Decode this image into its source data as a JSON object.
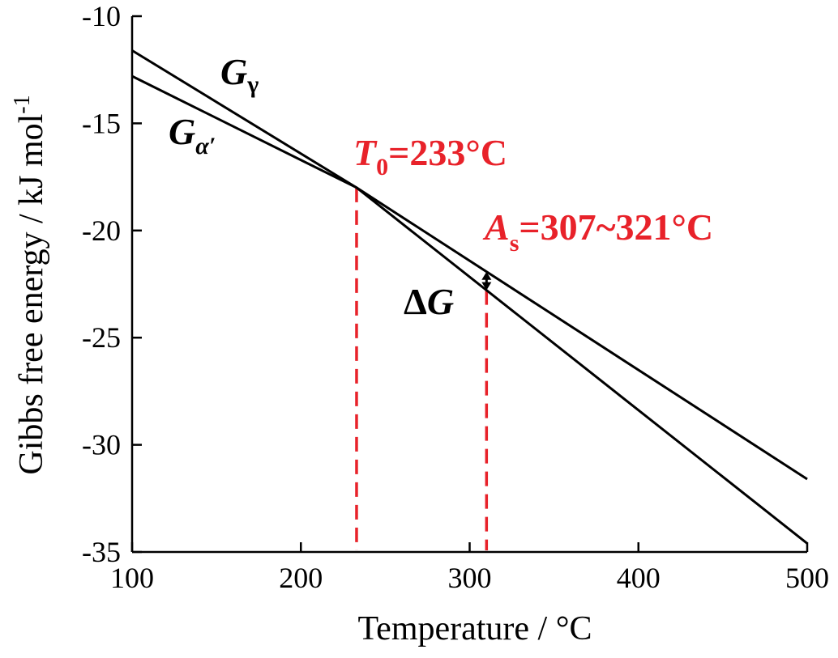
{
  "chart_data": {
    "type": "line",
    "title": "",
    "xlabel": "Temperature / °C",
    "ylabel_main": "Gibbs free energy / kJ mol",
    "ylabel_sup": "-1",
    "xlim": [
      100,
      500
    ],
    "ylim": [
      -35,
      -10
    ],
    "x_ticks": [
      100,
      200,
      300,
      400,
      500
    ],
    "y_ticks": [
      -10,
      -15,
      -20,
      -25,
      -30,
      -35
    ],
    "x_tick_labels": [
      "100",
      "200",
      "300",
      "400",
      "500"
    ],
    "y_tick_labels": [
      "-10",
      "-15",
      "-20",
      "-25",
      "-30",
      "-35"
    ],
    "grid": false,
    "legend": "none",
    "series": [
      {
        "label_main": "G",
        "label_sub": "γ",
        "x": [
          100,
          233,
          500
        ],
        "y": [
          -11.6,
          -18.0,
          -34.6
        ],
        "color": "#000000"
      },
      {
        "label_main": "G",
        "label_sub": "α′",
        "x": [
          100,
          233,
          500
        ],
        "y": [
          -12.8,
          -18.0,
          -31.6
        ],
        "color": "#000000"
      }
    ],
    "annotations": {
      "t0": {
        "main": "T",
        "sub": "0",
        "rest": "=233°C",
        "x": 233
      },
      "as": {
        "main": "A",
        "sub": "s",
        "rest": "=307~321°C",
        "x": 310
      },
      "delta_g": {
        "delta": "Δ",
        "g": "G",
        "x": 310
      }
    },
    "colors": {
      "axis": "#000000",
      "accent": "#e8222a"
    }
  }
}
